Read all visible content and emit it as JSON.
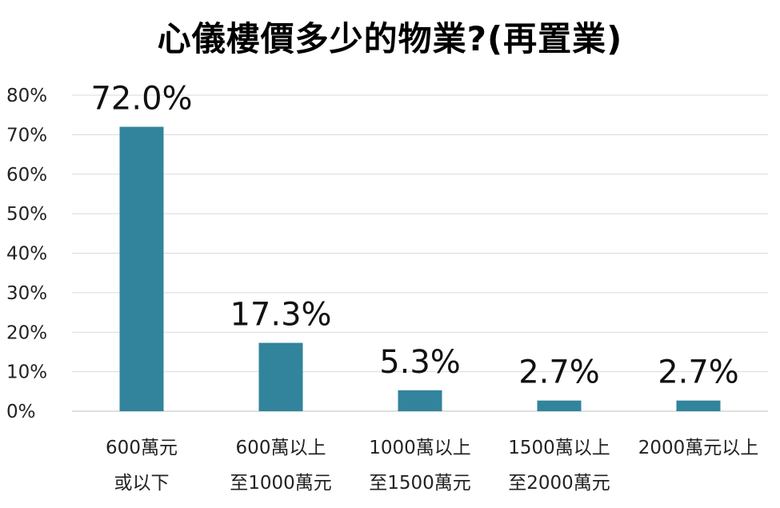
{
  "chart_data": {
    "type": "bar",
    "title": "心儀樓價多少的物業?(再置業)",
    "categories": [
      [
        "600萬元",
        "或以下"
      ],
      [
        "600萬以上",
        "至1000萬元"
      ],
      [
        "1000萬以上",
        "至1500萬元"
      ],
      [
        "1500萬以上",
        "至2000萬元"
      ],
      [
        "2000萬元以上"
      ]
    ],
    "values": [
      72.0,
      17.3,
      5.3,
      2.7,
      2.7
    ],
    "value_labels": [
      "72.0%",
      "17.3%",
      "5.3%",
      "2.7%",
      "2.7%"
    ],
    "y_ticks": [
      0,
      10,
      20,
      30,
      40,
      50,
      60,
      70,
      80
    ],
    "y_tick_labels": [
      "0%",
      "10%",
      "20%",
      "30%",
      "40%",
      "50%",
      "60%",
      "70%",
      "80%"
    ],
    "ylim": [
      0,
      80
    ],
    "grid": true,
    "legend": "none",
    "bar_color": "#31849b",
    "grid_color": "#d9d9d9"
  }
}
